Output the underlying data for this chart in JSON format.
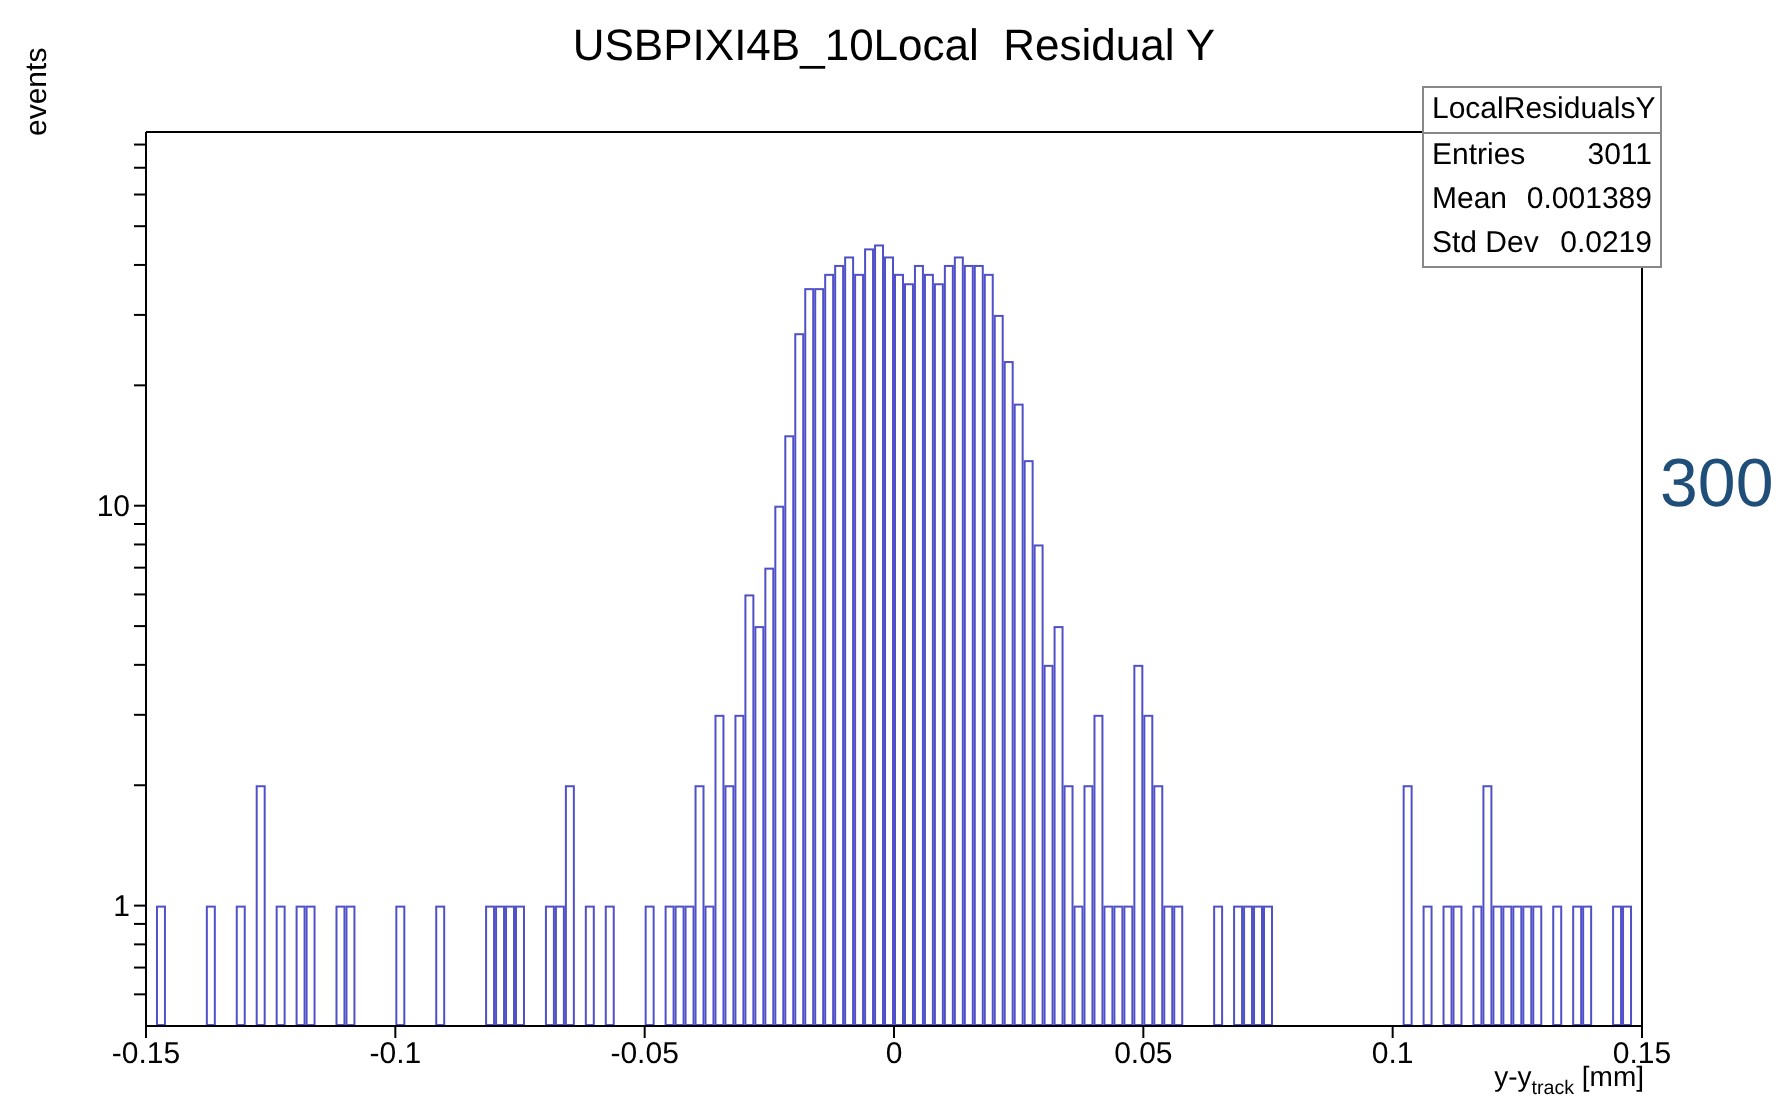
{
  "chart_data": {
    "type": "histogram",
    "title": "USBPIXI4B_10Local  Residual Y",
    "xlabel": "y-y$_{track}$ [mm]",
    "ylabel": "events",
    "color": "#5050c8",
    "log": "y",
    "bins": [
      -0.15,
      -0.148,
      -0.146,
      -0.144,
      -0.142,
      -0.14,
      -0.138,
      -0.136,
      -0.134,
      -0.132,
      -0.13,
      -0.128,
      -0.126,
      -0.124,
      -0.122,
      -0.12,
      -0.118,
      -0.116,
      -0.114,
      -0.112,
      -0.11,
      -0.108,
      -0.106,
      -0.104,
      -0.102,
      -0.1,
      -0.098,
      -0.096,
      -0.094,
      -0.092,
      -0.09,
      -0.088,
      -0.086,
      -0.084,
      -0.082,
      -0.08,
      -0.078,
      -0.076,
      -0.074,
      -0.072,
      -0.07,
      -0.068,
      -0.066,
      -0.064,
      -0.062,
      -0.06,
      -0.058,
      -0.056,
      -0.054,
      -0.052,
      -0.05,
      -0.048,
      -0.046,
      -0.044,
      -0.042,
      -0.04,
      -0.038,
      -0.036,
      -0.034,
      -0.032,
      -0.03,
      -0.028,
      -0.026,
      -0.024,
      -0.022,
      -0.02,
      -0.018,
      -0.016,
      -0.014,
      -0.012,
      -0.01,
      -0.008,
      -0.006,
      -0.004,
      -0.002,
      0,
      0.002,
      0.004,
      0.006,
      0.008,
      0.01,
      0.012,
      0.014,
      0.016,
      0.018,
      0.02,
      0.022,
      0.024,
      0.026,
      0.028,
      0.03,
      0.032,
      0.034,
      0.036,
      0.038,
      0.04,
      0.042,
      0.044,
      0.046,
      0.048,
      0.05,
      0.052,
      0.054,
      0.056,
      0.058,
      0.06,
      0.062,
      0.064,
      0.066,
      0.068,
      0.07,
      0.072,
      0.074,
      0.076,
      0.078,
      0.08,
      0.082,
      0.084,
      0.086,
      0.088,
      0.09,
      0.092,
      0.094,
      0.096,
      0.098,
      0.1,
      0.102,
      0.104,
      0.106,
      0.108,
      0.11,
      0.112,
      0.114,
      0.116,
      0.118,
      0.12,
      0.122,
      0.124,
      0.126,
      0.128,
      0.13,
      0.132,
      0.134,
      0.136,
      0.138,
      0.14,
      0.142,
      0.144,
      0.146,
      0.148,
      0.15
    ],
    "values": [
      null,
      1,
      null,
      null,
      null,
      null,
      1,
      null,
      null,
      1,
      null,
      2,
      null,
      1,
      null,
      1,
      1,
      null,
      null,
      1,
      1,
      null,
      null,
      null,
      null,
      1,
      null,
      null,
      null,
      1,
      null,
      null,
      null,
      null,
      1,
      1,
      1,
      1,
      null,
      null,
      1,
      1,
      2,
      null,
      1,
      null,
      1,
      null,
      null,
      null,
      1,
      null,
      1,
      1,
      1,
      2,
      1,
      3,
      2,
      3,
      6,
      5,
      7,
      10,
      15,
      27,
      35,
      35,
      38,
      40,
      42,
      38,
      44,
      45,
      42,
      38,
      36,
      40,
      38,
      36,
      40,
      42,
      40,
      40,
      38,
      30,
      23,
      18,
      13,
      8,
      4,
      5,
      2,
      1,
      2,
      3,
      1,
      1,
      1,
      4,
      3,
      2,
      1,
      1,
      null,
      null,
      null,
      1,
      null,
      1,
      1,
      1,
      1,
      null,
      null,
      null,
      null,
      null,
      null,
      null,
      null,
      null,
      null,
      null,
      null,
      null,
      2,
      null,
      1,
      null,
      1,
      1,
      null,
      1,
      2,
      1,
      1,
      1,
      1,
      1,
      null,
      1,
      null,
      1,
      1,
      null,
      null,
      1,
      1,
      null
    ],
    "xlim": [
      -0.15,
      0.15
    ],
    "xticks": [
      -0.15,
      -0.1,
      -0.05,
      0,
      0.05,
      0.1,
      0.15
    ],
    "ylim": [
      0.5,
      86
    ],
    "yticks": [
      {
        "value": 0.6,
        "label": null
      },
      {
        "value": 0.7,
        "label": null
      },
      {
        "value": 0.8,
        "label": null
      },
      {
        "value": 0.9,
        "label": null
      },
      1,
      {
        "value": 2,
        "label": null
      },
      {
        "value": 3,
        "label": null
      },
      {
        "value": 4,
        "label": null
      },
      {
        "value": 5,
        "label": null
      },
      {
        "value": 6,
        "label": null
      },
      {
        "value": 7,
        "label": null
      },
      {
        "value": 8,
        "label": null
      },
      {
        "value": 9,
        "label": null
      },
      10,
      {
        "value": 20,
        "label": null
      },
      {
        "value": 30,
        "label": null
      },
      {
        "value": 40,
        "label": null
      },
      {
        "value": 50,
        "label": null
      },
      {
        "value": 60,
        "label": null
      },
      {
        "value": 70,
        "label": null
      },
      {
        "value": 80,
        "label": null
      }
    ],
    "annotations": [
      "LocalResidualsY",
      "Entries",
      "3011",
      "Mean",
      "0.001389",
      "Std Dev",
      "0.0219",
      "300"
    ]
  }
}
